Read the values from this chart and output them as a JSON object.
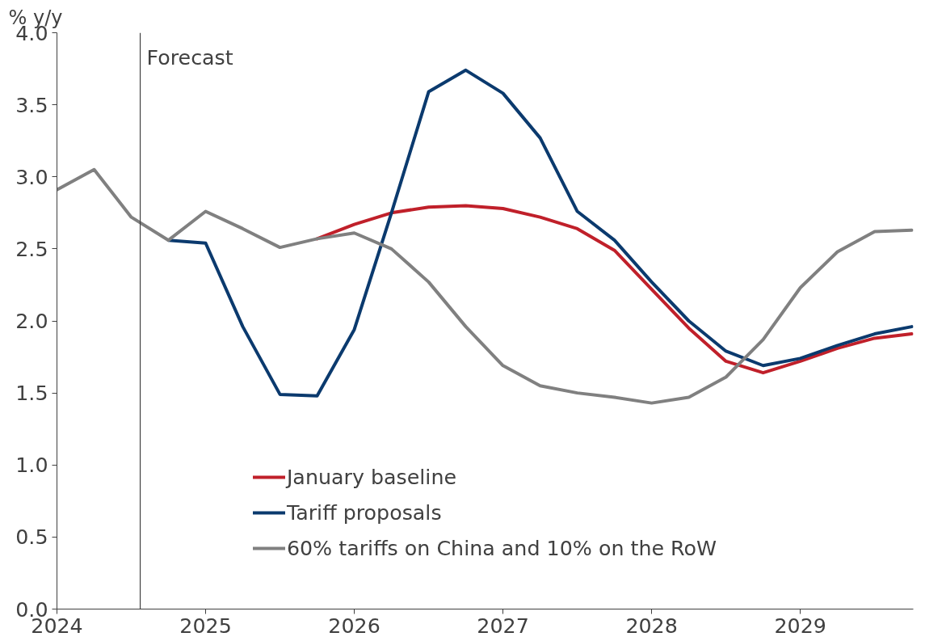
{
  "chart_data": {
    "type": "line",
    "ylabel": "% y/y",
    "xlim": [
      2024,
      2029.76
    ],
    "xticks": [
      2024,
      2025,
      2026,
      2027,
      2028,
      2029
    ],
    "ylim": [
      0,
      4
    ],
    "yticks": [
      {
        "value": 0,
        "label": "0.0"
      },
      {
        "value": 0.5,
        "label": "0.5"
      },
      {
        "value": 1,
        "label": "1.0"
      },
      {
        "value": 1.5,
        "label": "1.5"
      },
      {
        "value": 2,
        "label": "2.0"
      },
      {
        "value": 2.5,
        "label": "2.5"
      },
      {
        "value": 3,
        "label": "3.0"
      },
      {
        "value": 3.5,
        "label": "3.5"
      },
      {
        "value": 4,
        "label": "4.0"
      }
    ],
    "grid": false,
    "legend": "bottom",
    "marker": "none",
    "line_style": "solid",
    "ref_lines": [
      {
        "axis": "x",
        "value": 2024.56,
        "label": "Forecast",
        "color": "#404040"
      }
    ],
    "series": [
      {
        "name": "January baseline",
        "color": "#c0202a",
        "x": [
          2025.75,
          2026.0,
          2026.25,
          2026.5,
          2026.75,
          2027.0,
          2027.25,
          2027.5,
          2027.75,
          2028.0,
          2028.25,
          2028.5,
          2028.75,
          2029.0,
          2029.25,
          2029.5,
          2029.75
        ],
        "values": [
          2.57,
          2.67,
          2.75,
          2.79,
          2.8,
          2.78,
          2.72,
          2.64,
          2.49,
          2.22,
          1.95,
          1.72,
          1.64,
          1.72,
          1.81,
          1.88,
          1.91
        ]
      },
      {
        "name": "Tariff proposals",
        "color": "#0b3a6e",
        "x": [
          2024.75,
          2025.0,
          2025.25,
          2025.5,
          2025.75,
          2026.0,
          2026.25,
          2026.5,
          2026.75,
          2027.0,
          2027.25,
          2027.5,
          2027.75,
          2028.0,
          2028.25,
          2028.5,
          2028.75,
          2029.0,
          2029.25,
          2029.5,
          2029.75
        ],
        "values": [
          2.56,
          2.54,
          1.96,
          1.49,
          1.48,
          1.94,
          2.75,
          3.59,
          3.74,
          3.58,
          3.27,
          2.76,
          2.56,
          2.27,
          2.0,
          1.79,
          1.69,
          1.74,
          1.83,
          1.91,
          1.96
        ]
      },
      {
        "name": "60% tariffs on China and 10% on the RoW",
        "color": "#808080",
        "x": [
          2024.0,
          2024.25,
          2024.5,
          2024.75,
          2025.0,
          2025.25,
          2025.5,
          2025.75,
          2026.0,
          2026.25,
          2026.5,
          2026.75,
          2027.0,
          2027.25,
          2027.5,
          2027.75,
          2028.0,
          2028.25,
          2028.5,
          2028.75,
          2029.0,
          2029.25,
          2029.5,
          2029.75
        ],
        "values": [
          2.91,
          3.05,
          2.72,
          2.56,
          2.76,
          2.64,
          2.51,
          2.57,
          2.61,
          2.5,
          2.27,
          1.96,
          1.69,
          1.55,
          1.5,
          1.47,
          1.43,
          1.47,
          1.61,
          1.87,
          2.23,
          2.48,
          2.62,
          2.63
        ]
      }
    ]
  }
}
